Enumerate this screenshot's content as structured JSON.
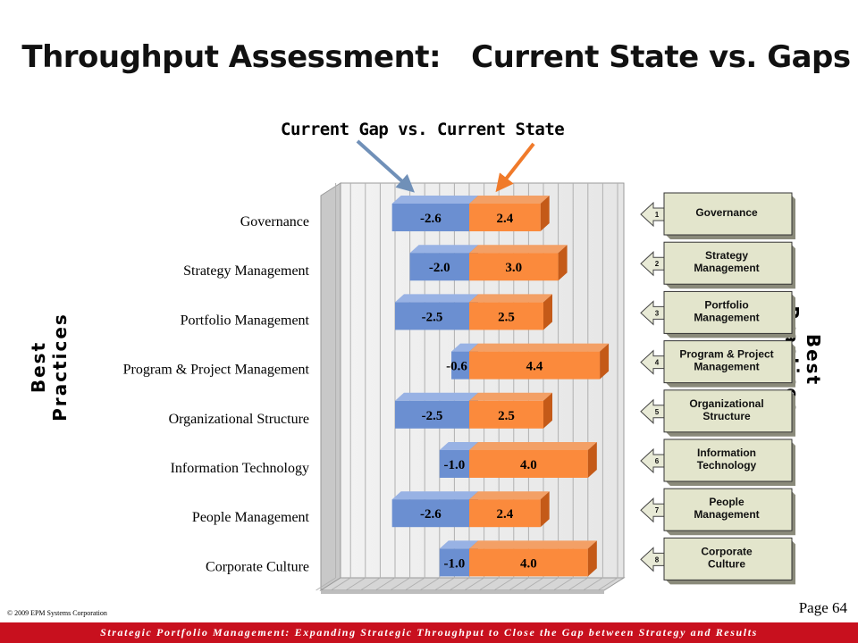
{
  "header": {
    "title": "Throughput Assessment:   Current State vs. Gaps",
    "subtitle": "Current Gap vs. Current State"
  },
  "axis_labels": {
    "left": "Best Practices",
    "right": "Best Practices"
  },
  "chart_data": {
    "type": "bar",
    "orientation": "horizontal",
    "stacked": "diverging",
    "title": "Current Gap vs. Current State",
    "ylabel": "Best Practices",
    "categories": [
      "Governance",
      "Strategy Management",
      "Portfolio Management",
      "Program & Project Management",
      "Organizational Structure",
      "Information Technology",
      "People Management",
      "Corporate Culture"
    ],
    "series": [
      {
        "name": "Current Gap",
        "color": "#6b8fd1",
        "values": [
          -2.6,
          -2.0,
          -2.5,
          -0.6,
          -2.5,
          -1.0,
          -2.6,
          -1.0
        ],
        "labels": [
          "-2.6",
          "-2.0",
          "-2.5",
          "-0.6",
          "-2.5",
          "-1.0",
          "-2.6",
          "-1.0"
        ]
      },
      {
        "name": "Current State",
        "color": "#fb8a3c",
        "values": [
          2.4,
          3.0,
          2.5,
          4.4,
          2.5,
          4.0,
          2.4,
          4.0
        ],
        "labels": [
          "2.4",
          "3.0",
          "2.5",
          "4.4",
          "2.5",
          "4.0",
          "2.4",
          "4.0"
        ]
      }
    ],
    "xlim": [
      -5,
      5
    ],
    "grid": true,
    "style": "3d"
  },
  "best_practices": [
    {
      "num": "1",
      "lines": [
        "Governance"
      ]
    },
    {
      "num": "2",
      "lines": [
        "Strategy",
        "Management"
      ]
    },
    {
      "num": "3",
      "lines": [
        "Portfolio",
        "Management"
      ]
    },
    {
      "num": "4",
      "lines": [
        "Program & Project",
        "Management"
      ]
    },
    {
      "num": "5",
      "lines": [
        "Organizational",
        "Structure"
      ]
    },
    {
      "num": "6",
      "lines": [
        "Information",
        "Technology"
      ]
    },
    {
      "num": "7",
      "lines": [
        "People",
        "Management"
      ]
    },
    {
      "num": "8",
      "lines": [
        "Corporate",
        "Culture"
      ]
    }
  ],
  "footer": {
    "copyright": "© 2009 EPM Systems Corporation",
    "page": "Page 64",
    "banner": "Strategic Portfolio Management:  Expanding Strategic Throughput to Close the Gap between Strategy and Results"
  },
  "colors": {
    "gap_bar": "#6b8fd1",
    "state_bar": "#fb8a3c",
    "arrow_gap": "#7090b8",
    "arrow_state": "#f07a2a",
    "footer_bg": "#c8101e",
    "box_fill": "#e3e5cc"
  }
}
